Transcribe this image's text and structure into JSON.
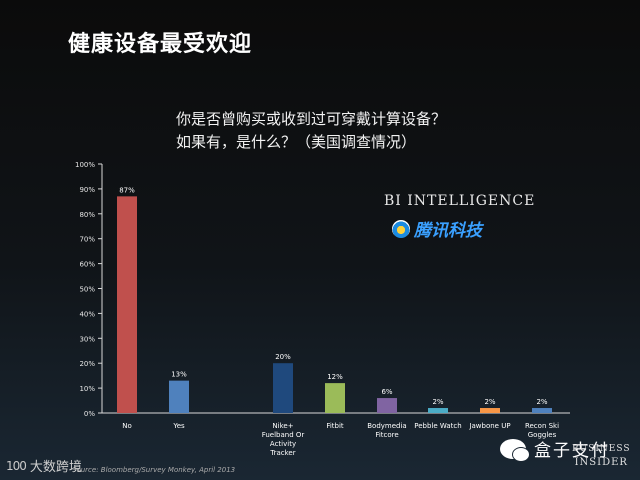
{
  "slide": {
    "title": "健康设备最受欢迎",
    "question_line1": "你是否曾购买或收到过可穿戴计算设备？",
    "question_line2": "如果有，是什么？（美国调查情况）",
    "source": "Source: Bloomberg/Survey Monkey, April 2013"
  },
  "logos": {
    "bi_intelligence": "BI INTELLIGENCE",
    "tencent_tech": "腾讯科技",
    "business": "BUSINESS",
    "insider": "INSIDER",
    "watermark_left": "大数跨境",
    "watermark_left_glyph": "100",
    "watermark_right": "盒子支付"
  },
  "colors": {
    "no": "#c0504d",
    "yes": "#4f81bd",
    "nike": "#1f497d",
    "fitbit": "#9bbb59",
    "bodymedia": "#8064a2",
    "pebble": "#4bacc6",
    "jawbone": "#f79646",
    "recon": "#4f81bd",
    "axis": "#d9d9d9",
    "text": "#ffffff"
  },
  "chart_data": {
    "type": "bar",
    "categories": [
      "No",
      "Yes",
      "Nike+ Fuelband Or Activity Tracker",
      "Fitbit",
      "Bodymedia Fitcore",
      "Pebble Watch",
      "Jawbone UP",
      "Recon Ski Goggles"
    ],
    "values": [
      87,
      13,
      20,
      12,
      6,
      2,
      2,
      2
    ],
    "value_labels": [
      "87%",
      "13%",
      "20%",
      "12%",
      "6%",
      "2%",
      "2%",
      "2%"
    ],
    "category_lines": [
      [
        "No"
      ],
      [
        "Yes"
      ],
      [
        "Nike+",
        "Fuelband Or",
        "Activity",
        "Tracker"
      ],
      [
        "Fitbit"
      ],
      [
        "Bodymedia",
        "Fitcore"
      ],
      [
        "Pebble Watch"
      ],
      [
        "Jawbone UP"
      ],
      [
        "Recon Ski",
        "Goggles"
      ]
    ],
    "y_ticks": [
      "0%",
      "10%",
      "20%",
      "30%",
      "40%",
      "50%",
      "60%",
      "70%",
      "80%",
      "90%",
      "100%"
    ],
    "ylim": [
      0,
      100
    ],
    "grid": false,
    "legend": "none"
  }
}
